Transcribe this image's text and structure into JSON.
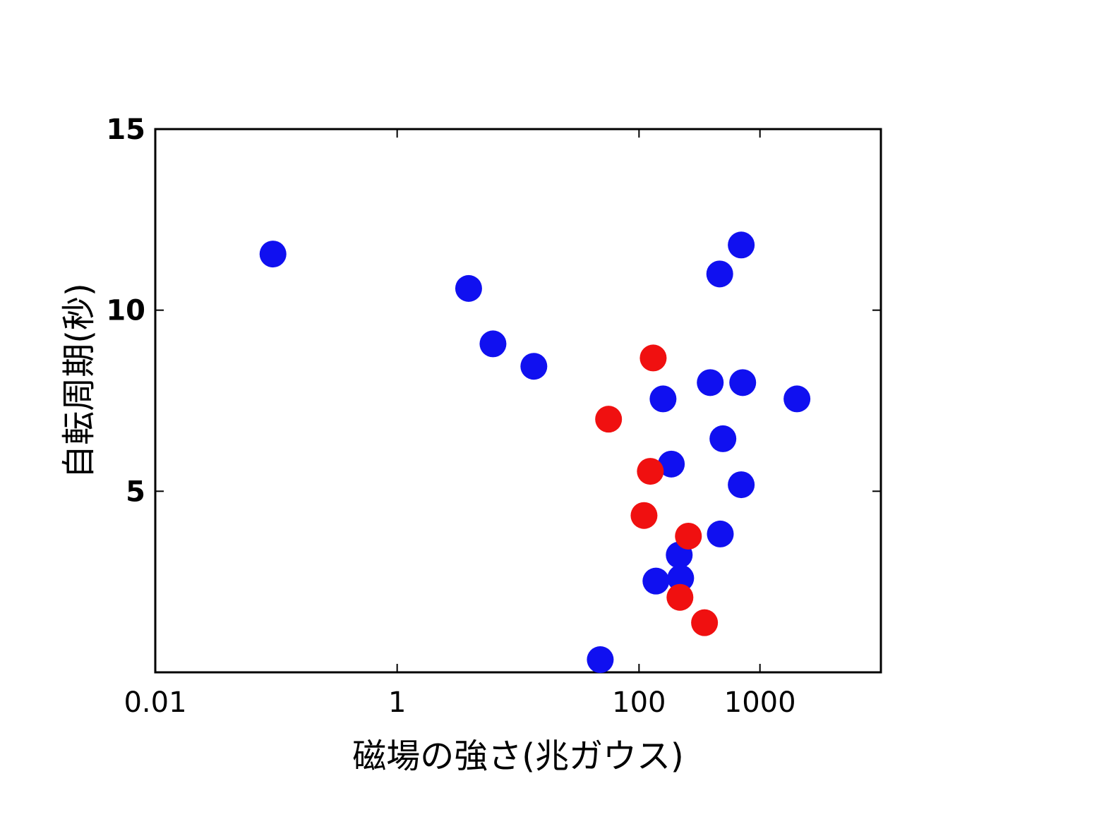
{
  "chart_data": {
    "type": "scatter",
    "x_label": "磁場の強さ(兆ガウス)",
    "y_label": "自転周期(秒)",
    "xlim": [
      0.01,
      10000
    ],
    "xticks": [
      0.01,
      1,
      100,
      1000
    ],
    "xscale": "log",
    "ylim": [
      0,
      15
    ],
    "yticks": [
      5,
      10,
      15
    ],
    "series": [
      {
        "color": "#1010f0",
        "x": [
          0.094,
          3.9,
          6.2,
          13.5,
          700,
          465,
          388,
          720,
          158,
          2024,
          494,
          185,
          700,
          470,
          215,
          138,
          221,
          47.8
        ],
        "values": [
          11.55,
          10.6,
          9.07,
          8.45,
          11.8,
          11.0,
          8.0,
          8.0,
          7.55,
          7.55,
          6.45,
          5.75,
          5.18,
          3.82,
          3.24,
          2.52,
          2.6,
          0.35
        ]
      },
      {
        "color": "#f01010",
        "x": [
          131,
          56,
          124,
          110,
          256,
          218,
          348
        ],
        "values": [
          8.68,
          6.99,
          5.55,
          4.33,
          3.76,
          2.07,
          1.37
        ]
      }
    ]
  }
}
